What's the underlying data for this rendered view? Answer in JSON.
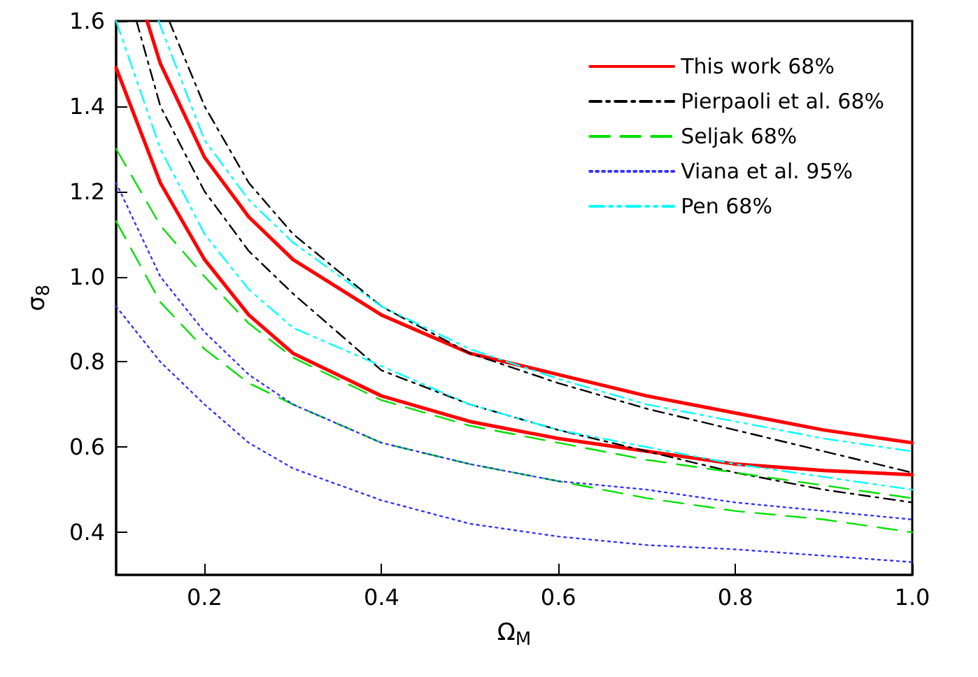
{
  "chart_data": {
    "type": "line",
    "xlabel": "Ω$_{M}$",
    "ylabel": "σ$_{8}$",
    "xlim": [
      0.1,
      1.0
    ],
    "ylim": [
      0.3,
      1.6
    ],
    "xticks": [
      0.2,
      0.4,
      0.6,
      0.8,
      {
        "value": 1,
        "label": "1.0"
      }
    ],
    "yticks": [
      0.4,
      0.6,
      0.8,
      {
        "value": 1,
        "label": "1.0"
      },
      1.2,
      1.4,
      1.6
    ],
    "grid": false,
    "legend": "top right",
    "marker": "none",
    "series": [
      {
        "name": "This work 68%",
        "color": "#ff0000",
        "line_style": "solid",
        "x": [
          0.135,
          0.15,
          0.2,
          0.25,
          0.3,
          0.4,
          0.5,
          0.6,
          0.7,
          0.8,
          0.9,
          1.0
        ],
        "values": [
          1.6,
          1.5,
          1.28,
          1.14,
          1.04,
          0.91,
          0.82,
          0.77,
          0.72,
          0.68,
          0.64,
          0.61
        ]
      },
      {
        "color": "#ff0000",
        "line_style": "solid",
        "x": [
          0.1,
          0.15,
          0.2,
          0.25,
          0.3,
          0.4,
          0.5,
          0.6,
          0.7,
          0.8,
          0.9,
          1.0
        ],
        "values": [
          1.49,
          1.22,
          1.04,
          0.91,
          0.82,
          0.72,
          0.66,
          0.62,
          0.59,
          0.56,
          0.545,
          0.535
        ]
      },
      {
        "name": "Pierpaoli et al. 68%",
        "color": "#000000",
        "line_style": "dashdot",
        "x": [
          0.16,
          0.2,
          0.25,
          0.3,
          0.4,
          0.5,
          0.6,
          0.7,
          0.8,
          0.9,
          1.0
        ],
        "values": [
          1.6,
          1.4,
          1.22,
          1.1,
          0.93,
          0.82,
          0.75,
          0.69,
          0.64,
          0.59,
          0.54
        ]
      },
      {
        "color": "#000000",
        "line_style": "dashdot",
        "x": [
          0.123,
          0.15,
          0.2,
          0.25,
          0.3,
          0.4,
          0.5,
          0.6,
          0.7,
          0.8,
          0.9,
          1.0
        ],
        "values": [
          1.6,
          1.4,
          1.2,
          1.06,
          0.96,
          0.78,
          0.7,
          0.64,
          0.59,
          0.54,
          0.5,
          0.47
        ]
      },
      {
        "name": "Seljak 68%",
        "color": "#00e000",
        "line_style": "dashed",
        "x": [
          0.1,
          0.15,
          0.2,
          0.25,
          0.3,
          0.4,
          0.5,
          0.6,
          0.7,
          0.8,
          0.9,
          1.0
        ],
        "values": [
          1.3,
          1.12,
          1.0,
          0.89,
          0.81,
          0.71,
          0.65,
          0.61,
          0.57,
          0.54,
          0.51,
          0.48
        ]
      },
      {
        "color": "#00e000",
        "line_style": "dashed",
        "x": [
          0.1,
          0.15,
          0.2,
          0.25,
          0.3,
          0.4,
          0.5,
          0.6,
          0.7,
          0.8,
          0.9,
          1.0
        ],
        "values": [
          1.13,
          0.94,
          0.83,
          0.75,
          0.7,
          0.61,
          0.56,
          0.52,
          0.48,
          0.45,
          0.43,
          0.4
        ]
      },
      {
        "name": "Viana et al. 95%",
        "color": "#3333ff",
        "line_style": "dotted",
        "x": [
          0.1,
          0.15,
          0.2,
          0.25,
          0.3,
          0.4,
          0.5,
          0.6,
          0.7,
          0.8,
          0.9,
          1.0
        ],
        "values": [
          1.22,
          1.0,
          0.87,
          0.77,
          0.7,
          0.61,
          0.56,
          0.52,
          0.5,
          0.47,
          0.45,
          0.43
        ]
      },
      {
        "color": "#3333ff",
        "line_style": "dotted",
        "x": [
          0.1,
          0.15,
          0.2,
          0.25,
          0.3,
          0.4,
          0.5,
          0.6,
          0.7,
          0.8,
          0.9,
          1.0
        ],
        "values": [
          0.93,
          0.8,
          0.7,
          0.61,
          0.55,
          0.475,
          0.42,
          0.39,
          0.37,
          0.36,
          0.345,
          0.33
        ]
      },
      {
        "name": "Pen 68%",
        "color": "#00ffff",
        "line_style": "dashdotdot",
        "x": [
          0.148,
          0.2,
          0.25,
          0.3,
          0.4,
          0.5,
          0.6,
          0.7,
          0.8,
          0.9,
          1.0
        ],
        "values": [
          1.6,
          1.32,
          1.18,
          1.08,
          0.93,
          0.83,
          0.76,
          0.7,
          0.66,
          0.62,
          0.59
        ]
      },
      {
        "color": "#00ffff",
        "line_style": "dashdotdot",
        "x": [
          0.1,
          0.15,
          0.2,
          0.25,
          0.3,
          0.4,
          0.5,
          0.6,
          0.7,
          0.8,
          0.9,
          1.0
        ],
        "values": [
          1.6,
          1.3,
          1.1,
          0.97,
          0.88,
          0.79,
          0.7,
          0.64,
          0.6,
          0.56,
          0.53,
          0.5
        ]
      }
    ]
  }
}
